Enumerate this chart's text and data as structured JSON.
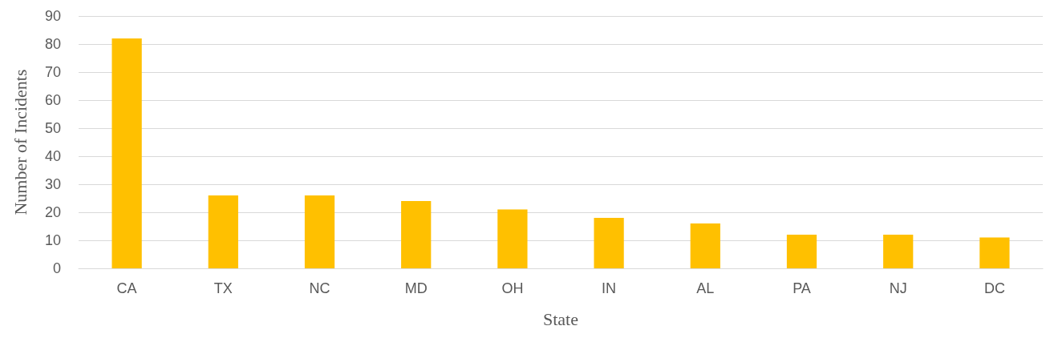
{
  "chart_data": {
    "type": "bar",
    "xlabel": "State",
    "ylabel": "Number of Incidents",
    "categories": [
      "CA",
      "TX",
      "NC",
      "MD",
      "OH",
      "IN",
      "AL",
      "PA",
      "NJ",
      "DC"
    ],
    "values": [
      82,
      26,
      26,
      24,
      21,
      18,
      16,
      12,
      12,
      11
    ],
    "color": "#ffc000",
    "ylim": [
      0,
      90
    ],
    "yticks": [
      0,
      10,
      20,
      30,
      40,
      50,
      60,
      70,
      80,
      90
    ],
    "grid": "y"
  }
}
